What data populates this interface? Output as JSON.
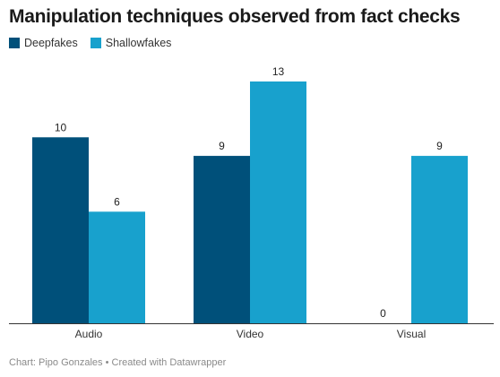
{
  "title": "Manipulation techniques observed from fact checks",
  "footer": "Chart: Pipo Gonzales • Created with Datawrapper",
  "chart_data": {
    "type": "bar",
    "title": "Manipulation techniques observed from fact checks",
    "categories": [
      "Audio",
      "Video",
      "Visual"
    ],
    "series": [
      {
        "name": "Deepfakes",
        "values": [
          10,
          9,
          0
        ],
        "color": "#00507a"
      },
      {
        "name": "Shallowfakes",
        "values": [
          6,
          13,
          9
        ],
        "color": "#18a1cd"
      }
    ],
    "ylim": [
      0,
      13
    ],
    "grid": false,
    "legend": "top-left",
    "data_labels": true
  }
}
